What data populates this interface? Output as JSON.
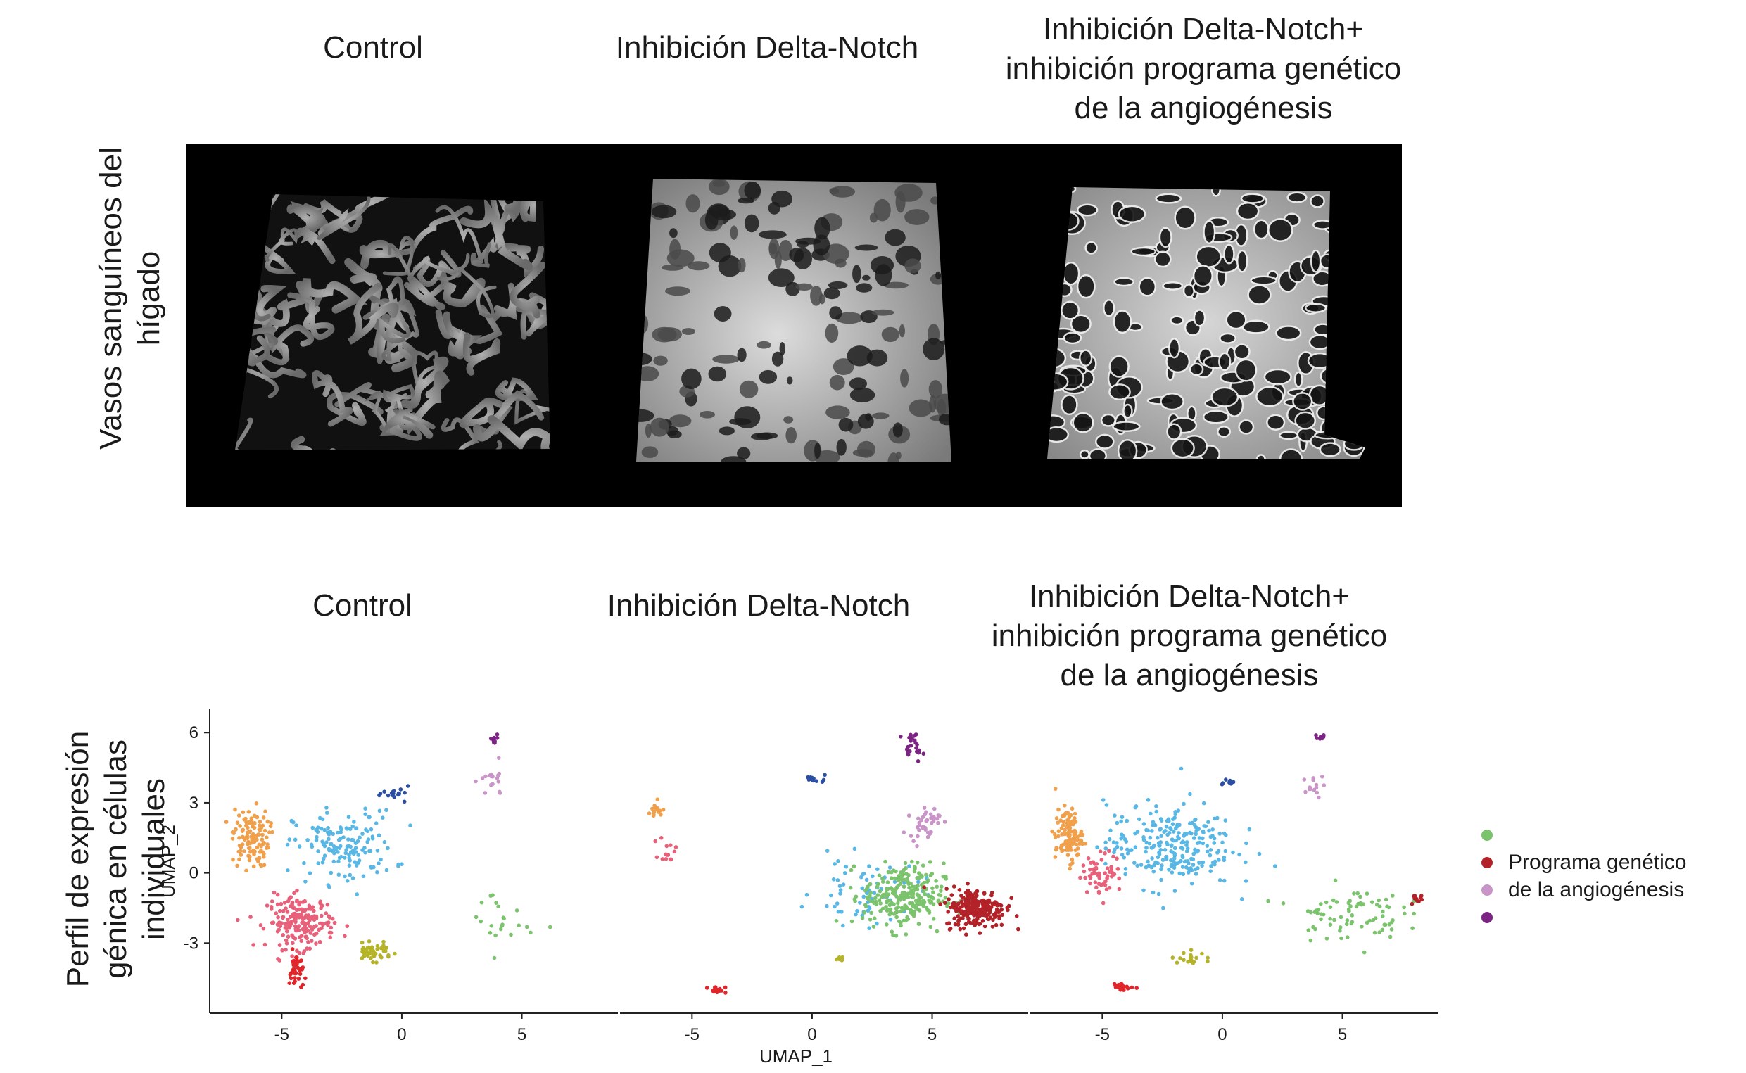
{
  "top_panel": {
    "row_label": "Vasos sanguíneos del hígado",
    "column_titles": [
      "Control",
      "Inhibición Delta-Notch",
      "Inhibición Delta-Notch+\ninhibición programa genético\nde la angiogénesis"
    ]
  },
  "bottom_panel": {
    "row_label": "Perfil de expresión génica en células individuales",
    "column_titles": [
      "Control",
      "Inhibición Delta-Notch",
      "Inhibición Delta-Notch+\ninhibición programa genético\nde la angiogénesis"
    ]
  },
  "legend": {
    "items": [
      {
        "label": "",
        "color": "#7cc36e"
      },
      {
        "label": "Programa genético",
        "color": "#b22228"
      },
      {
        "label": "de la angiogénesis",
        "color": "#c994c7"
      },
      {
        "label": "",
        "color": "#7b2483"
      }
    ]
  },
  "colors": {
    "orange": "#f0a04b",
    "light_blue": "#58b7e5",
    "pink": "#e8617a",
    "red": "#e0262b",
    "olive": "#b5b429",
    "navy": "#2b4fa2",
    "lilac": "#c994c7",
    "purple": "#7b2483",
    "green": "#7cc36e",
    "dark_red": "#b22228"
  },
  "chart_data": {
    "type": "scatter",
    "xlabel": "UMAP_1",
    "ylabel": "UMAP_2",
    "xlim": [
      -8,
      9
    ],
    "ylim": [
      -6,
      7
    ],
    "x_ticks": [
      -5,
      0,
      5
    ],
    "x_tick_labels": [
      "-5",
      "0",
      "5"
    ],
    "y_ticks": [
      6,
      3,
      0,
      -3
    ],
    "y_tick_labels": [
      "6",
      "3",
      "0",
      "-3"
    ],
    "panels": [
      {
        "name": "Control",
        "clusters": [
          {
            "color": "orange",
            "center": [
              -6.3,
              1.5
            ],
            "spread": [
              0.55,
              0.9
            ],
            "n": 120
          },
          {
            "color": "light_blue",
            "center": [
              -2.4,
              1.1
            ],
            "spread": [
              1.5,
              1.1
            ],
            "n": 150
          },
          {
            "color": "pink",
            "center": [
              -4.2,
              -2.1
            ],
            "spread": [
              1.0,
              0.8
            ],
            "n": 200
          },
          {
            "color": "red",
            "center": [
              -4.4,
              -4.2
            ],
            "spread": [
              0.2,
              0.6
            ],
            "n": 40
          },
          {
            "color": "olive",
            "center": [
              -1.2,
              -3.4
            ],
            "spread": [
              0.55,
              0.25
            ],
            "n": 45
          },
          {
            "color": "navy",
            "center": [
              -0.2,
              3.4
            ],
            "spread": [
              0.4,
              0.2
            ],
            "n": 18
          },
          {
            "color": "lilac",
            "center": [
              3.8,
              3.9
            ],
            "spread": [
              0.4,
              0.5
            ],
            "n": 18
          },
          {
            "color": "purple",
            "center": [
              3.8,
              5.6
            ],
            "spread": [
              0.15,
              0.25
            ],
            "n": 8
          },
          {
            "color": "green",
            "center": [
              4.1,
              -2.0
            ],
            "spread": [
              1.0,
              1.1
            ],
            "n": 22
          }
        ]
      },
      {
        "name": "Inhibición Delta-Notch",
        "clusters": [
          {
            "color": "orange",
            "center": [
              -6.5,
              2.6
            ],
            "spread": [
              0.3,
              0.3
            ],
            "n": 14
          },
          {
            "color": "light_blue",
            "center": [
              2.3,
              -0.8
            ],
            "spread": [
              1.6,
              1.0
            ],
            "n": 70
          },
          {
            "color": "pink",
            "center": [
              -6.0,
              1.0
            ],
            "spread": [
              0.25,
              0.4
            ],
            "n": 14
          },
          {
            "color": "red",
            "center": [
              -4.0,
              -5.0
            ],
            "spread": [
              0.3,
              0.1
            ],
            "n": 14
          },
          {
            "color": "green",
            "center": [
              3.8,
              -1.0
            ],
            "spread": [
              1.2,
              1.0
            ],
            "n": 260
          },
          {
            "color": "dark_red",
            "center": [
              6.8,
              -1.5
            ],
            "spread": [
              0.9,
              0.6
            ],
            "n": 240
          },
          {
            "color": "lilac",
            "center": [
              4.7,
              2.2
            ],
            "spread": [
              0.45,
              0.5
            ],
            "n": 40
          },
          {
            "color": "purple",
            "center": [
              4.2,
              5.4
            ],
            "spread": [
              0.3,
              0.4
            ],
            "n": 22
          },
          {
            "color": "navy",
            "center": [
              0.2,
              4.0
            ],
            "spread": [
              0.3,
              0.1
            ],
            "n": 12
          },
          {
            "color": "olive",
            "center": [
              1.2,
              -3.7
            ],
            "spread": [
              0.25,
              0.1
            ],
            "n": 6
          }
        ]
      },
      {
        "name": "Inhibición Delta-Notch+ inhibición programa genético de la angiogénesis",
        "clusters": [
          {
            "color": "orange",
            "center": [
              -6.4,
              1.6
            ],
            "spread": [
              0.4,
              0.8
            ],
            "n": 110
          },
          {
            "color": "light_blue",
            "center": [
              -2.2,
              1.2
            ],
            "spread": [
              1.9,
              1.3
            ],
            "n": 260
          },
          {
            "color": "pink",
            "center": [
              -5.0,
              0.0
            ],
            "spread": [
              0.6,
              0.6
            ],
            "n": 60
          },
          {
            "color": "red",
            "center": [
              -4.2,
              -4.9
            ],
            "spread": [
              0.35,
              0.12
            ],
            "n": 20
          },
          {
            "color": "olive",
            "center": [
              -1.0,
              -3.6
            ],
            "spread": [
              0.8,
              0.2
            ],
            "n": 18
          },
          {
            "color": "navy",
            "center": [
              0.2,
              3.9
            ],
            "spread": [
              0.3,
              0.1
            ],
            "n": 10
          },
          {
            "color": "lilac",
            "center": [
              3.9,
              3.6
            ],
            "spread": [
              0.35,
              0.4
            ],
            "n": 14
          },
          {
            "color": "purple",
            "center": [
              4.1,
              5.8
            ],
            "spread": [
              0.2,
              0.1
            ],
            "n": 10
          },
          {
            "color": "green",
            "center": [
              5.2,
              -1.7
            ],
            "spread": [
              1.6,
              0.8
            ],
            "n": 80
          },
          {
            "color": "dark_red",
            "center": [
              8.1,
              -1.1
            ],
            "spread": [
              0.2,
              0.3
            ],
            "n": 10
          }
        ]
      }
    ]
  }
}
